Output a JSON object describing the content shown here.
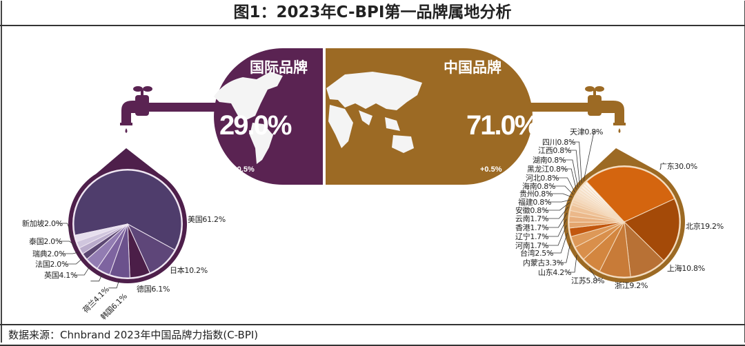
{
  "title": "图1：2023年C-BPI第一品牌属地分析",
  "source": "数据来源：Chnbrand 2023年中国品牌力指数(C-BPI)",
  "colors": {
    "international": "#5a2352",
    "china": "#9c6a24"
  },
  "international": {
    "label": "国际品牌",
    "share": "29.0%",
    "change": "-0.5%"
  },
  "china": {
    "label": "中国品牌",
    "share": "71.0%",
    "change": "+0.5%"
  },
  "chart_data": [
    {
      "type": "pie",
      "title": "国际品牌",
      "categories": [
        "美国",
        "日本",
        "德国",
        "韩国",
        "荷兰",
        "英国",
        "法国",
        "瑞典",
        "泰国",
        "新加坡"
      ],
      "values": [
        61.2,
        10.2,
        6.1,
        6.1,
        4.1,
        4.1,
        2.0,
        2.0,
        2.0,
        2.0
      ],
      "labels": [
        "美国61.2%",
        "日本10.2%",
        "德国6.1%",
        "韩国6.1%",
        "荷兰4.1%",
        "英国4.1%",
        "法国2.0%",
        "瑞典2.0%",
        "泰国2.0%",
        "新加坡2.0%"
      ],
      "colors": [
        "#4f3d6c",
        "#5e4679",
        "#4b1e48",
        "#6b518c",
        "#7e64a0",
        "#927cb2",
        "#5b4772",
        "#b9abcb",
        "#d0c6de",
        "#e6dfee"
      ]
    },
    {
      "type": "pie",
      "title": "中国品牌",
      "categories": [
        "广东",
        "北京",
        "上海",
        "浙江",
        "江苏",
        "山东",
        "内蒙古",
        "台湾",
        "河南",
        "辽宁",
        "香港",
        "云南",
        "安徽",
        "福建",
        "贵州",
        "海南",
        "河北",
        "黑龙江",
        "湖南",
        "江西",
        "四川",
        "天津"
      ],
      "values": [
        30.0,
        19.2,
        10.8,
        9.2,
        5.8,
        4.2,
        3.3,
        2.5,
        1.7,
        1.7,
        1.7,
        1.7,
        0.8,
        0.8,
        0.8,
        0.8,
        0.8,
        0.8,
        0.8,
        0.8,
        0.8,
        0.8
      ],
      "labels": [
        "广东30.0%",
        "北京19.2%",
        "上海10.8%",
        "浙江9.2%",
        "江苏5.8%",
        "山东4.2%",
        "内蒙古3.3%",
        "台湾2.5%",
        "河南1.7%",
        "辽宁1.7%",
        "香港1.7%",
        "云南1.7%",
        "安徽0.8%",
        "福建0.8%",
        "贵州0.8%",
        "海南0.8%",
        "河北0.8%",
        "黑龙江0.8%",
        "湖南0.8%",
        "江西0.8%",
        "四川0.8%",
        "天津0.8%"
      ],
      "colors": [
        "#d4650f",
        "#a44a08",
        "#b87135",
        "#c87b38",
        "#d3863f",
        "#d98f4b",
        "#dd9858",
        "#c2570f",
        "#e4a56e",
        "#e8ae7c",
        "#ebb88a",
        "#eec298",
        "#f0caa6",
        "#f2d1b1",
        "#f4d8bc",
        "#f5ddc5",
        "#f7e2cd",
        "#f8e7d5",
        "#f9ebdc",
        "#faeee2",
        "#fbf2e8",
        "#fcf5ee"
      ]
    }
  ]
}
